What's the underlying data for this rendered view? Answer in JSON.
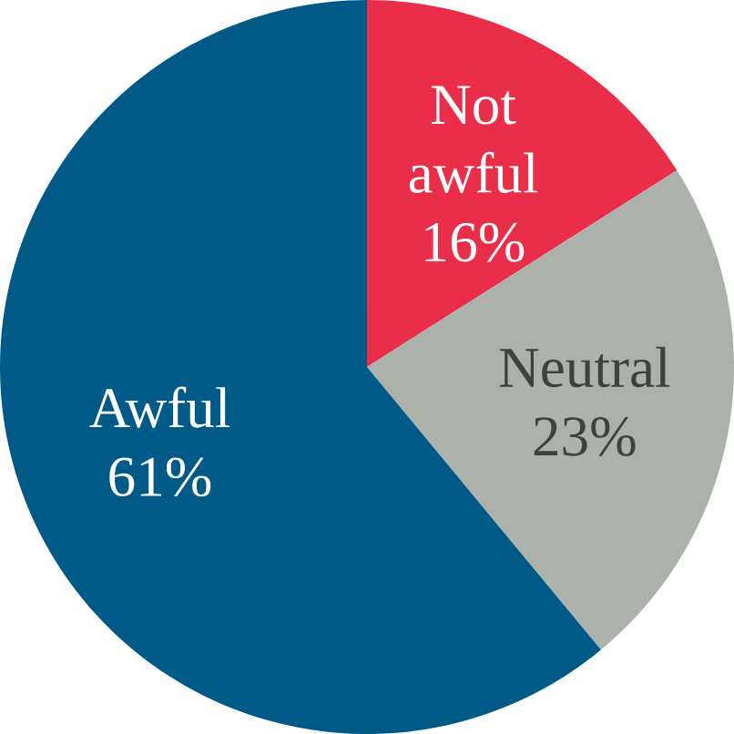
{
  "chart_data": {
    "type": "pie",
    "categories": [
      "Not awful",
      "Neutral",
      "Awful"
    ],
    "values": [
      16,
      23,
      61
    ],
    "colors": [
      "#ea2e49",
      "#adb1ab",
      "#005a87"
    ],
    "value_labels": [
      "16%",
      "23%",
      "61%"
    ]
  }
}
